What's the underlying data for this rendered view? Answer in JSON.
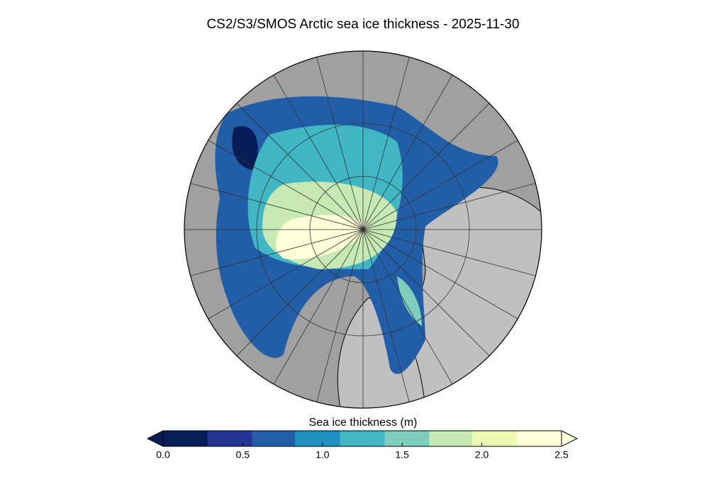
{
  "title": "CS2/S3/SMOS Arctic sea ice thickness - 2025-11-30",
  "colorbar": {
    "label": "Sea ice thickness (m)",
    "range": [
      0,
      2.5
    ],
    "bins": [
      0,
      0.28,
      0.56,
      0.83,
      1.11,
      1.39,
      1.67,
      1.94,
      2.22,
      2.5
    ],
    "colors": [
      "#081d58",
      "#253494",
      "#225ea8",
      "#1d91c0",
      "#41b6c4",
      "#7fcdbb",
      "#c7e9b4",
      "#edf8b1",
      "#ffffd9"
    ],
    "ticks": [
      {
        "value": 0,
        "label": "0.0"
      },
      0.5,
      {
        "value": 1,
        "label": "1.0"
      },
      1.5,
      {
        "value": 2,
        "label": "2.0"
      },
      2.5
    ]
  }
}
